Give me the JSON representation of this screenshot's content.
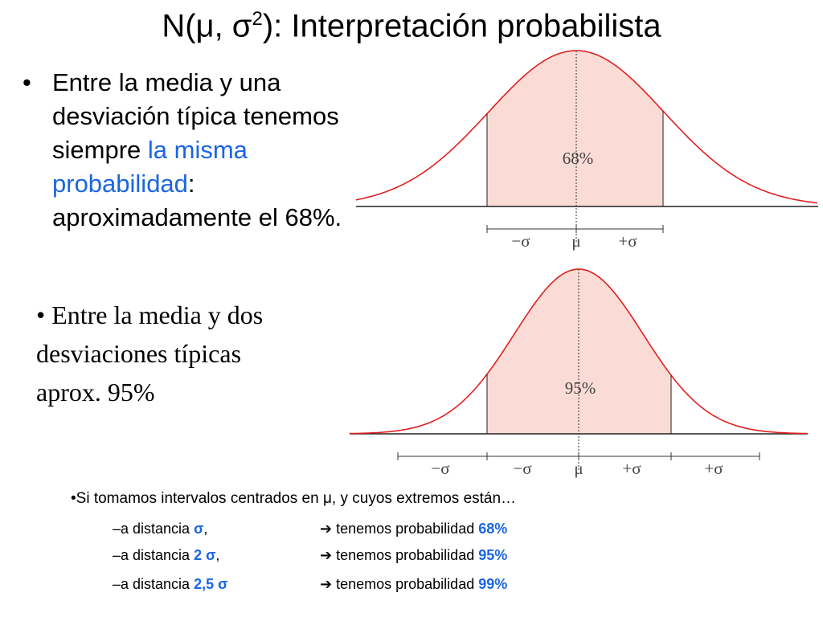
{
  "title": {
    "base": "N(μ, σ",
    "sup": "2",
    "rest": "): Interpretación probabilista"
  },
  "bullet1": {
    "marker": "•",
    "text": "Entre la media y una desviación típica tenemos siempre ",
    "highlight": "la misma probabilidad",
    "after": ":",
    "rest": " aproximadamente el 68%."
  },
  "bullet2": {
    "text": "• Entre la media y dos desviaciones típicas aprox. 95%"
  },
  "figure1": {
    "area_label": "68%",
    "axis_labels": [
      "−σ",
      "μ",
      "+σ"
    ]
  },
  "figure2": {
    "area_label": "95%",
    "axis_labels": [
      "−σ",
      "−σ",
      "μ",
      "+σ",
      "+σ"
    ]
  },
  "summary": {
    "intro": "•Si tomamos intervalos centrados en μ, y cuyos extremos están…",
    "rows": [
      {
        "prefix": "–a distancia ",
        "distance": "σ",
        "suffix": ",",
        "arrow": "➔",
        "result": " tenemos probabilidad ",
        "probability": "68%"
      },
      {
        "prefix": "–a distancia ",
        "distance": "2 σ",
        "suffix": ",",
        "arrow": "➔",
        "result": " tenemos probabilidad ",
        "probability": "95%"
      },
      {
        "prefix": "–a distancia ",
        "distance": "2,5 σ",
        "suffix": "",
        "arrow": "➔",
        "result": " tenemos probabilidad ",
        "probability": "99%"
      }
    ]
  }
}
